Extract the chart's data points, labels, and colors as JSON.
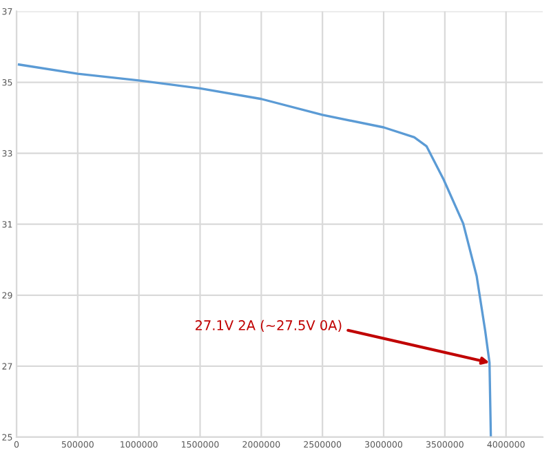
{
  "chart_data": {
    "type": "line",
    "x": [
      20000,
      500000,
      1000000,
      1500000,
      2000000,
      2500000,
      3000000,
      3250000,
      3350000,
      3490000,
      3650000,
      3760000,
      3830000,
      3865000,
      3876000
    ],
    "series": [
      {
        "color": "#5b9bd5",
        "values": [
          35.5,
          35.24,
          35.05,
          34.83,
          34.53,
          34.08,
          33.73,
          33.45,
          33.2,
          32.26,
          31.02,
          29.54,
          27.99,
          27.1,
          25
        ]
      }
    ],
    "xlim": [
      0,
      4300000
    ],
    "xticks": [
      0,
      500000,
      1000000,
      1500000,
      2000000,
      2500000,
      3000000,
      3500000,
      4000000
    ],
    "ylim": [
      25,
      37
    ],
    "yticks": [
      25,
      27,
      29,
      31,
      33,
      35,
      37
    ],
    "grid": true,
    "marker": "none",
    "line_style": "solid",
    "annotations": [
      {
        "text": "27.1V 2A (~27.5V 0A)",
        "x": 3865000,
        "y": 27.1
      }
    ]
  }
}
